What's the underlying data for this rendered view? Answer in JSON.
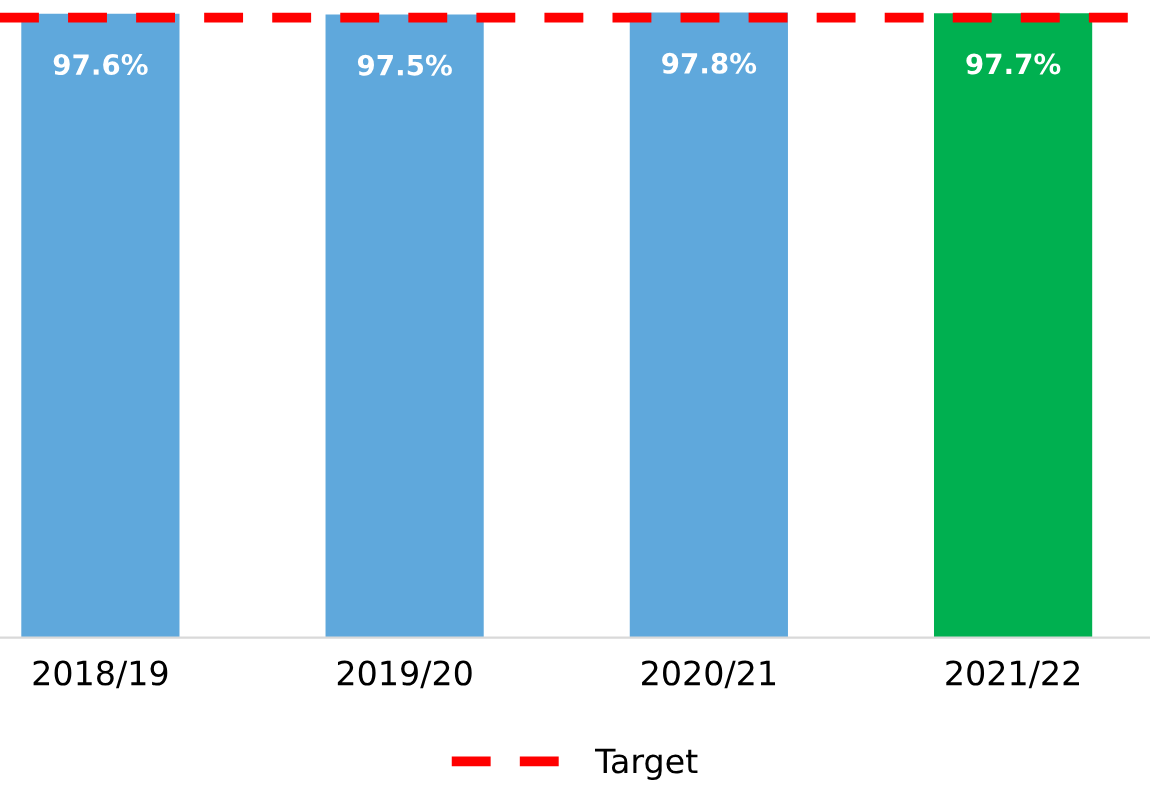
{
  "chart_data": {
    "type": "bar",
    "categories": [
      "2018/19",
      "2019/20",
      "2020/21",
      "2021/22"
    ],
    "values": [
      97.6,
      97.5,
      97.8,
      97.7
    ],
    "colors": [
      "#5fa8dc",
      "#5fa8dc",
      "#5fa8dc",
      "#00b050"
    ],
    "value_labels": [
      "97.6%",
      "97.5%",
      "97.8%",
      "97.7%"
    ],
    "tick_labels": "x",
    "grid": false,
    "legend": "bottom",
    "ref_lines": [
      {
        "axis": "y",
        "value": 97.0,
        "label": "Target",
        "color": "#ff0000",
        "line_style": "dashed"
      }
    ]
  }
}
